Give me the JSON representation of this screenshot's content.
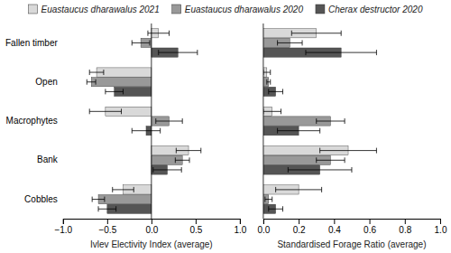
{
  "chart_data": [
    {
      "type": "bar",
      "orientation": "horizontal",
      "xlabel": "Ivlev Electivity Index (average)",
      "categories": [
        "Fallen timber",
        "Open",
        "Macrophytes",
        "Bank",
        "Cobbles"
      ],
      "xlim": [
        -1,
        1
      ],
      "xticks": [
        {
          "value": -1,
          "label": "−1.0"
        },
        {
          "value": -0.5,
          "label": "−0.5"
        },
        {
          "value": 0,
          "label": "0.0"
        },
        0.5,
        {
          "value": 1,
          "label": "1.0"
        }
      ],
      "grid": false,
      "series": [
        {
          "color": "#d9d9d9",
          "values": [
            0.08,
            -0.62,
            -0.52,
            0.42,
            -0.32
          ],
          "errors": [
            0.12,
            0.08,
            0.18,
            0.14,
            0.12
          ]
        },
        {
          "color": "#999999",
          "values": [
            -0.12,
            -0.68,
            0.2,
            0.35,
            -0.6
          ],
          "errors": [
            0.1,
            0.05,
            0.15,
            0.08,
            0.07
          ]
        },
        {
          "color": "#555555",
          "values": [
            0.3,
            -0.42,
            -0.06,
            0.18,
            -0.5
          ],
          "errors": [
            0.22,
            0.1,
            0.16,
            0.16,
            0.1
          ]
        }
      ]
    },
    {
      "type": "bar",
      "orientation": "horizontal",
      "xlabel": "Standardised Forage Ratio (average)",
      "categories": [
        "Fallen timber",
        "Open",
        "Macrophytes",
        "Bank",
        "Cobbles"
      ],
      "tick_labels": "x",
      "xlim": [
        0,
        1
      ],
      "xticks": [
        {
          "value": 0,
          "label": "0.0"
        },
        0.2,
        0.4,
        0.6,
        0.8,
        {
          "value": 1,
          "label": "1.0"
        }
      ],
      "grid": false,
      "legend": "top",
      "series": [
        {
          "name": "Euastaucus dharawalus 2021",
          "color": "#d9d9d9",
          "values": [
            0.3,
            0.02,
            0.05,
            0.48,
            0.2
          ],
          "errors": [
            0.14,
            0.02,
            0.05,
            0.16,
            0.13
          ]
        },
        {
          "name": "Euastaucus dharawalus 2020",
          "color": "#999999",
          "values": [
            0.15,
            0.03,
            0.38,
            0.38,
            0.03
          ],
          "errors": [
            0.07,
            0.01,
            0.08,
            0.08,
            0.02
          ]
        },
        {
          "name": "Cherax destructor 2020",
          "color": "#555555",
          "values": [
            0.44,
            0.07,
            0.2,
            0.32,
            0.07
          ],
          "errors": [
            0.2,
            0.04,
            0.12,
            0.18,
            0.04
          ]
        }
      ]
    }
  ]
}
